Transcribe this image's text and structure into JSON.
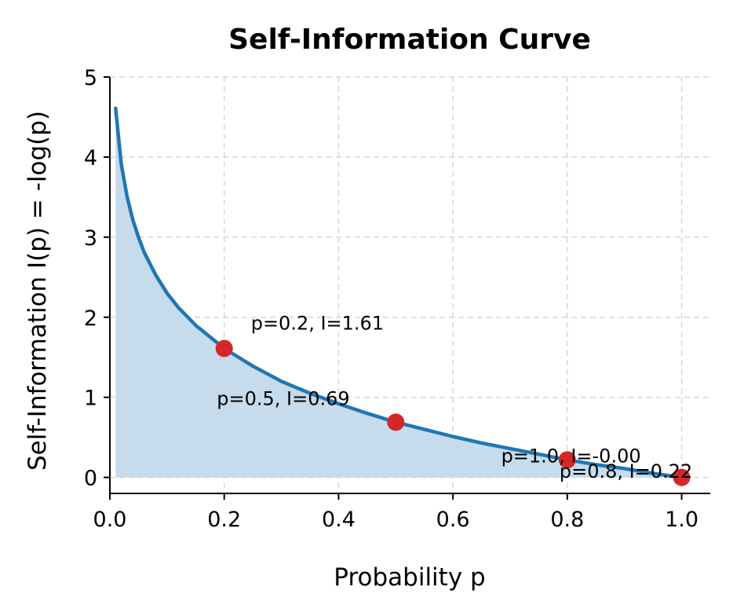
{
  "chart_data": {
    "type": "line",
    "title": "Self-Information Curve",
    "xlabel": "Probability p",
    "ylabel": "Self-Information I(p) = -log(p)",
    "xlim": [
      0.0,
      1.05
    ],
    "ylim": [
      -0.2,
      5.0
    ],
    "xticks": [
      "0.0",
      "0.2",
      "0.4",
      "0.6",
      "0.8",
      "1.0"
    ],
    "xtick_values": [
      0.0,
      0.2,
      0.4,
      0.6,
      0.8,
      1.0
    ],
    "yticks": [
      "0",
      "1",
      "2",
      "3",
      "4",
      "5"
    ],
    "ytick_values": [
      0,
      1,
      2,
      3,
      4,
      5
    ],
    "grid": true,
    "series": [
      {
        "x": [
          0.01,
          0.02,
          0.03,
          0.04,
          0.05,
          0.06,
          0.08,
          0.1,
          0.12,
          0.15,
          0.2,
          0.25,
          0.3,
          0.35,
          0.4,
          0.45,
          0.5,
          0.55,
          0.6,
          0.65,
          0.7,
          0.75,
          0.8,
          0.85,
          0.9,
          0.95,
          1.0
        ],
        "y": [
          4.61,
          3.91,
          3.51,
          3.22,
          3.0,
          2.81,
          2.53,
          2.3,
          2.12,
          1.9,
          1.61,
          1.39,
          1.2,
          1.05,
          0.92,
          0.8,
          0.69,
          0.6,
          0.51,
          0.43,
          0.36,
          0.29,
          0.22,
          0.16,
          0.11,
          0.05,
          0.0
        ],
        "color": "#1f77b4",
        "fill_color": "#c6dbec"
      }
    ],
    "points": [
      {
        "p": 0.2,
        "I": 1.61,
        "label": "p=0.2, I=1.61"
      },
      {
        "p": 0.5,
        "I": 0.69,
        "label": "p=0.5, I=0.69"
      },
      {
        "p": 0.8,
        "I": 0.22,
        "label": "p=0.8, I=0.22"
      },
      {
        "p": 1.0,
        "I": 0.0,
        "label": "p=1.0, I=-0.00"
      }
    ],
    "point_color": "#d62728"
  }
}
